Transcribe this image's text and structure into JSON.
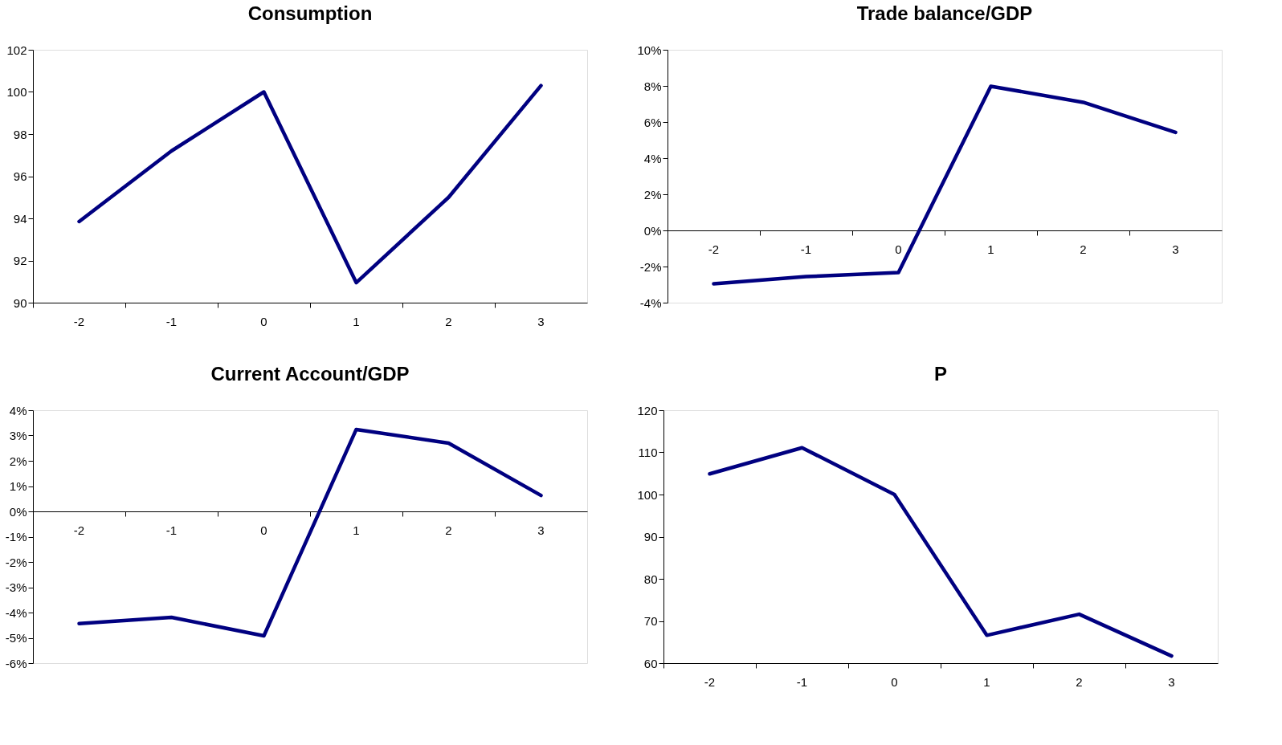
{
  "chart_data": [
    {
      "type": "line",
      "title": "Consumption",
      "categories": [
        "-2",
        "-1",
        "0",
        "1",
        "2",
        "3"
      ],
      "series": [
        {
          "color": "#000080",
          "values": [
            93.85,
            97.2,
            100,
            90.95,
            95.0,
            100.3
          ]
        }
      ],
      "ylim": [
        90,
        102
      ],
      "yticks": [
        90,
        92,
        94,
        96,
        98,
        100,
        102
      ],
      "grid": false,
      "marker": "none",
      "line_style": "solid"
    },
    {
      "type": "line",
      "title": "Trade balance/GDP",
      "categories": [
        "-2",
        "-1",
        "0",
        "1",
        "2",
        "3"
      ],
      "series": [
        {
          "color": "#000080",
          "values": [
            -2.96,
            -2.56,
            -2.33,
            7.98,
            7.09,
            5.43
          ]
        }
      ],
      "ylim": [
        -4,
        10
      ],
      "yticks": [
        {
          "value": -4,
          "label": "-4%"
        },
        {
          "value": -2,
          "label": "-2%"
        },
        {
          "value": 0,
          "label": "0%"
        },
        {
          "value": 2,
          "label": "2%"
        },
        {
          "value": 4,
          "label": "4%"
        },
        {
          "value": 6,
          "label": "6%"
        },
        {
          "value": 8,
          "label": "8%"
        },
        {
          "value": 10,
          "label": "10%"
        }
      ],
      "grid": false,
      "marker": "none",
      "line_style": "solid"
    },
    {
      "type": "line",
      "title": "Current Account/GDP",
      "categories": [
        "-2",
        "-1",
        "0",
        "1",
        "2",
        "3"
      ],
      "series": [
        {
          "color": "#000080",
          "values": [
            -4.44,
            -4.19,
            -4.92,
            3.24,
            2.7,
            0.63
          ]
        }
      ],
      "ylim": [
        -6,
        4
      ],
      "yticks": [
        {
          "value": -6,
          "label": "-6%"
        },
        {
          "value": -5,
          "label": "-5%"
        },
        {
          "value": -4,
          "label": "-4%"
        },
        {
          "value": -3,
          "label": "-3%"
        },
        {
          "value": -2,
          "label": "-2%"
        },
        {
          "value": -1,
          "label": "-1%"
        },
        {
          "value": 0,
          "label": "0%"
        },
        {
          "value": 1,
          "label": "1%"
        },
        {
          "value": 2,
          "label": "2%"
        },
        {
          "value": 3,
          "label": "3%"
        },
        {
          "value": 4,
          "label": "4%"
        }
      ],
      "grid": false,
      "marker": "none",
      "line_style": "solid"
    },
    {
      "type": "line",
      "title": "P",
      "categories": [
        "-2",
        "-1",
        "0",
        "1",
        "2",
        "3"
      ],
      "series": [
        {
          "color": "#000080",
          "values": [
            104.9,
            111.1,
            100,
            66.6,
            71.6,
            61.7
          ]
        }
      ],
      "ylim": [
        60,
        120
      ],
      "yticks": [
        60,
        70,
        80,
        90,
        100,
        110,
        120
      ],
      "grid": false,
      "marker": "none",
      "line_style": "solid"
    }
  ]
}
